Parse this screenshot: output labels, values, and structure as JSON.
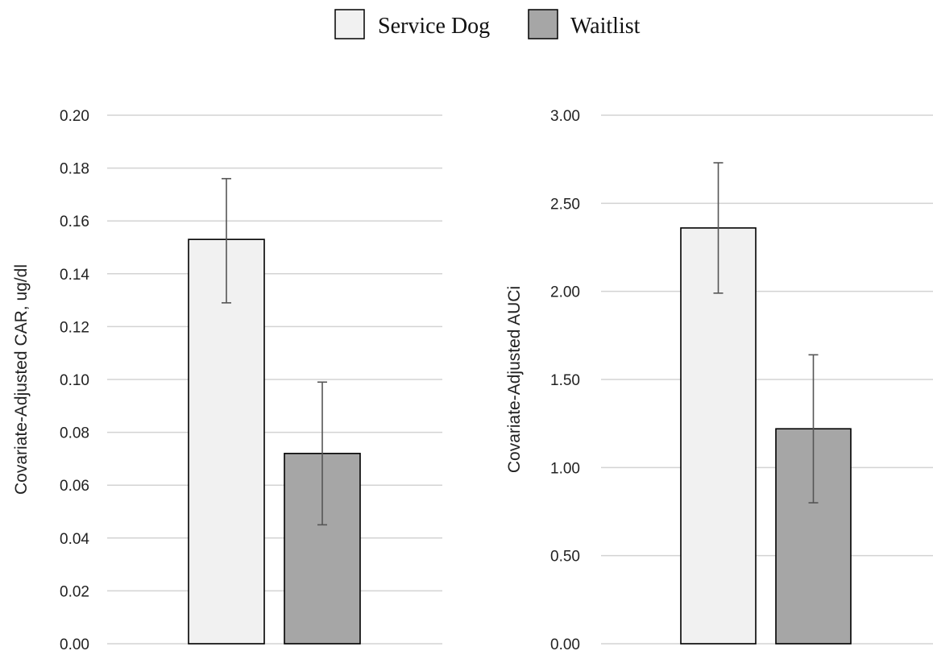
{
  "legend": {
    "placement": "top-center",
    "items": [
      {
        "label": "Service Dog",
        "color": "#f1f1f1"
      },
      {
        "label": "Waitlist",
        "color": "#a6a6a6"
      }
    ]
  },
  "chart_data": [
    {
      "type": "bar",
      "ylabel": "Covariate-Adjusted CAR, ug/dl",
      "ylim": [
        0,
        0.2
      ],
      "yticks": [
        "0.00",
        "0.02",
        "0.04",
        "0.06",
        "0.08",
        "0.10",
        "0.12",
        "0.14",
        "0.16",
        "0.18",
        "0.20"
      ],
      "grid": true,
      "series": [
        {
          "name": "Service Dog",
          "value": 0.153,
          "error": [
            0.129,
            0.176
          ],
          "color": "#f1f1f1"
        },
        {
          "name": "Waitlist",
          "value": 0.072,
          "error": [
            0.045,
            0.099
          ],
          "color": "#a6a6a6"
        }
      ]
    },
    {
      "type": "bar",
      "ylabel": "Covariate-Adjusted AUCi",
      "ylim": [
        0,
        3.0
      ],
      "yticks": [
        "0.00",
        "0.50",
        "1.00",
        "1.50",
        "2.00",
        "2.50",
        "3.00"
      ],
      "grid": true,
      "series": [
        {
          "name": "Service Dog",
          "value": 2.36,
          "error": [
            1.99,
            2.73
          ],
          "color": "#f1f1f1"
        },
        {
          "name": "Waitlist",
          "value": 1.22,
          "error": [
            0.8,
            1.64
          ],
          "color": "#a6a6a6"
        }
      ]
    }
  ]
}
